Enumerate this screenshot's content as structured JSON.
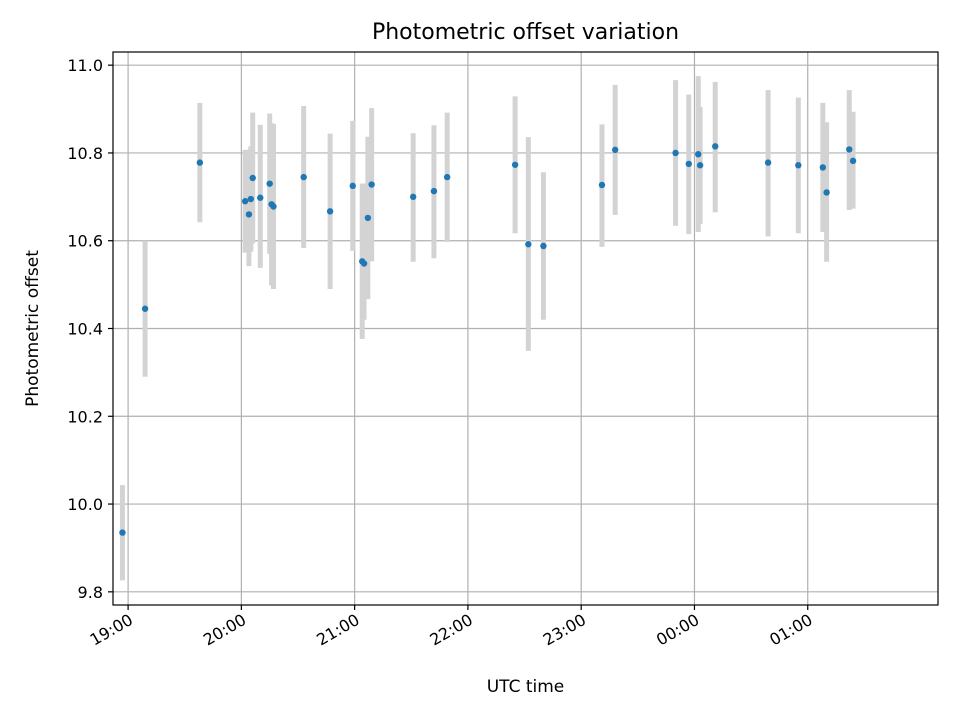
{
  "chart_data": {
    "type": "scatter",
    "title": "Photometric offset variation",
    "xlabel": "UTC time",
    "ylabel": "Photometric offset",
    "x_unit": "UTC time of day (24h clock, wraps past midnight)",
    "xlim": [
      "18:52",
      "02:09"
    ],
    "ylim": [
      9.77,
      11.03
    ],
    "grid": true,
    "x_ticks": [
      "19:00",
      "20:00",
      "21:00",
      "22:00",
      "23:00",
      "00:00",
      "01:00"
    ],
    "y_ticks": [
      9.8,
      10.0,
      10.2,
      10.4,
      10.6,
      10.8,
      11.0
    ],
    "y_tick_labels": [
      "9.8",
      "10.0",
      "10.2",
      "10.4",
      "10.6",
      "10.8",
      "11.0"
    ],
    "marker_color": "#1f77b4",
    "errorbar_color": "#d3d3d3",
    "points": [
      {
        "x": "18:57",
        "y": 9.935,
        "y_low": 9.826,
        "y_high": 10.043
      },
      {
        "x": "19:09",
        "y": 10.445,
        "y_low": 10.29,
        "y_high": 10.6
      },
      {
        "x": "19:38",
        "y": 10.778,
        "y_low": 10.642,
        "y_high": 10.914
      },
      {
        "x": "20:02",
        "y": 10.69,
        "y_low": 10.573,
        "y_high": 10.807
      },
      {
        "x": "20:04",
        "y": 10.66,
        "y_low": 10.542,
        "y_high": 10.807
      },
      {
        "x": "20:05",
        "y": 10.695,
        "y_low": 10.575,
        "y_high": 10.815
      },
      {
        "x": "20:06",
        "y": 10.743,
        "y_low": 10.594,
        "y_high": 10.892
      },
      {
        "x": "20:10",
        "y": 10.698,
        "y_low": 10.538,
        "y_high": 10.864
      },
      {
        "x": "20:15",
        "y": 10.73,
        "y_low": 10.57,
        "y_high": 10.89
      },
      {
        "x": "20:16",
        "y": 10.683,
        "y_low": 10.498,
        "y_high": 10.868
      },
      {
        "x": "20:17",
        "y": 10.678,
        "y_low": 10.49,
        "y_high": 10.866
      },
      {
        "x": "20:33",
        "y": 10.745,
        "y_low": 10.583,
        "y_high": 10.907
      },
      {
        "x": "20:47",
        "y": 10.667,
        "y_low": 10.49,
        "y_high": 10.844
      },
      {
        "x": "20:59",
        "y": 10.725,
        "y_low": 10.577,
        "y_high": 10.873
      },
      {
        "x": "21:04",
        "y": 10.553,
        "y_low": 10.376,
        "y_high": 10.73
      },
      {
        "x": "21:05",
        "y": 10.548,
        "y_low": 10.42,
        "y_high": 10.73
      },
      {
        "x": "21:07",
        "y": 10.652,
        "y_low": 10.467,
        "y_high": 10.837
      },
      {
        "x": "21:09",
        "y": 10.728,
        "y_low": 10.553,
        "y_high": 10.902
      },
      {
        "x": "21:31",
        "y": 10.7,
        "y_low": 10.552,
        "y_high": 10.845
      },
      {
        "x": "21:42",
        "y": 10.713,
        "y_low": 10.56,
        "y_high": 10.863
      },
      {
        "x": "21:49",
        "y": 10.745,
        "y_low": 10.597,
        "y_high": 10.892
      },
      {
        "x": "22:25",
        "y": 10.773,
        "y_low": 10.617,
        "y_high": 10.929
      },
      {
        "x": "22:32",
        "y": 10.592,
        "y_low": 10.349,
        "y_high": 10.836
      },
      {
        "x": "22:40",
        "y": 10.588,
        "y_low": 10.42,
        "y_high": 10.756
      },
      {
        "x": "23:11",
        "y": 10.727,
        "y_low": 10.586,
        "y_high": 10.865
      },
      {
        "x": "23:18",
        "y": 10.807,
        "y_low": 10.659,
        "y_high": 10.955
      },
      {
        "x": "23:50",
        "y": 10.8,
        "y_low": 10.634,
        "y_high": 10.966
      },
      {
        "x": "23:57",
        "y": 10.775,
        "y_low": 10.615,
        "y_high": 10.933
      },
      {
        "x": "00:02",
        "y": 10.797,
        "y_low": 10.62,
        "y_high": 10.975
      },
      {
        "x": "00:03",
        "y": 10.772,
        "y_low": 10.638,
        "y_high": 10.905
      },
      {
        "x": "00:11",
        "y": 10.815,
        "y_low": 10.665,
        "y_high": 10.962
      },
      {
        "x": "00:39",
        "y": 10.778,
        "y_low": 10.61,
        "y_high": 10.943
      },
      {
        "x": "00:55",
        "y": 10.772,
        "y_low": 10.617,
        "y_high": 10.926
      },
      {
        "x": "01:08",
        "y": 10.767,
        "y_low": 10.62,
        "y_high": 10.914
      },
      {
        "x": "01:10",
        "y": 10.71,
        "y_low": 10.552,
        "y_high": 10.87
      },
      {
        "x": "01:22",
        "y": 10.808,
        "y_low": 10.67,
        "y_high": 10.943
      },
      {
        "x": "01:24",
        "y": 10.782,
        "y_low": 10.673,
        "y_high": 10.894
      }
    ]
  }
}
